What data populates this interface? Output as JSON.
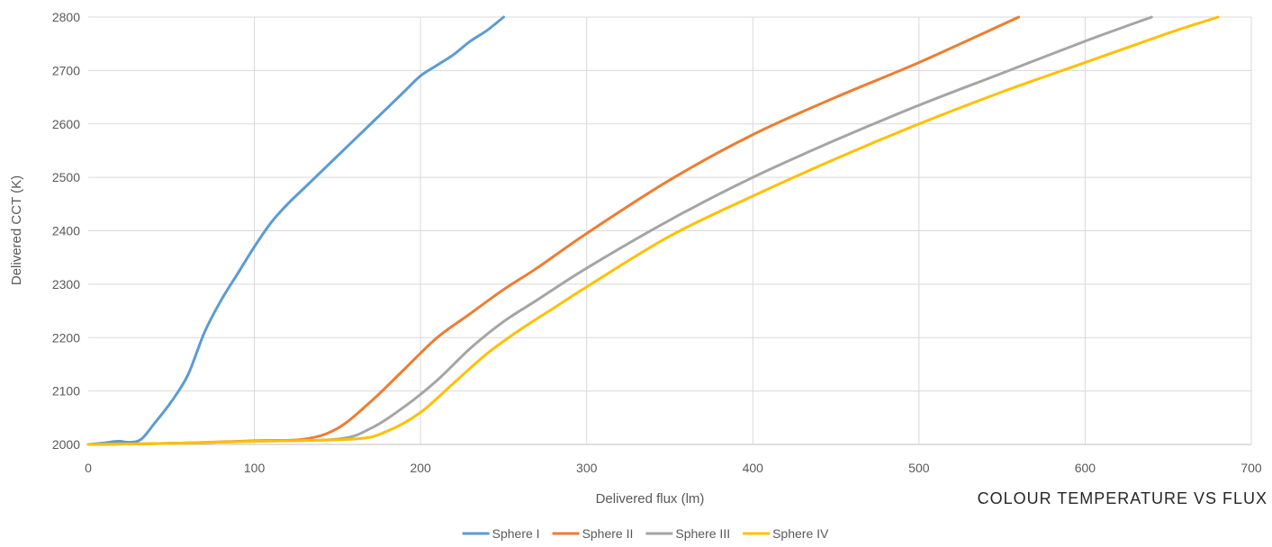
{
  "chart_data": {
    "type": "line",
    "title": "COLOUR TEMPERATURE VS FLUX",
    "xlabel": "Delivered flux (lm)",
    "ylabel": "Delivered CCT (K)",
    "xlim": [
      0,
      700
    ],
    "ylim": [
      2000,
      2800
    ],
    "xticks": [
      0,
      100,
      200,
      300,
      400,
      500,
      600,
      700
    ],
    "yticks": [
      2000,
      2100,
      2200,
      2300,
      2400,
      2500,
      2600,
      2700,
      2800
    ],
    "grid": true,
    "legend_position": "bottom",
    "series": [
      {
        "name": "Sphere I",
        "color": "#5b9bd5",
        "x": [
          0,
          10,
          18,
          25,
          32,
          40,
          50,
          60,
          70,
          80,
          90,
          100,
          110,
          120,
          130,
          140,
          150,
          160,
          170,
          180,
          190,
          200,
          210,
          220,
          230,
          240,
          250
        ],
        "y": [
          2000,
          2003,
          2006,
          2004,
          2010,
          2040,
          2080,
          2130,
          2210,
          2270,
          2320,
          2370,
          2415,
          2450,
          2480,
          2510,
          2540,
          2570,
          2600,
          2630,
          2660,
          2690,
          2710,
          2730,
          2755,
          2775,
          2800
        ]
      },
      {
        "name": "Sphere II",
        "color": "#ed7d31",
        "x": [
          0,
          50,
          100,
          130,
          150,
          170,
          190,
          210,
          230,
          250,
          270,
          300,
          350,
          400,
          450,
          500,
          560
        ],
        "y": [
          2000,
          2002,
          2007,
          2010,
          2030,
          2080,
          2140,
          2200,
          2245,
          2290,
          2330,
          2395,
          2495,
          2580,
          2650,
          2715,
          2800
        ]
      },
      {
        "name": "Sphere III",
        "color": "#a5a5a5",
        "x": [
          0,
          50,
          100,
          150,
          170,
          190,
          210,
          230,
          250,
          270,
          300,
          350,
          400,
          450,
          500,
          550,
          600,
          640
        ],
        "y": [
          2000,
          2002,
          2006,
          2010,
          2030,
          2070,
          2120,
          2180,
          2230,
          2270,
          2330,
          2420,
          2500,
          2570,
          2635,
          2695,
          2755,
          2800
        ]
      },
      {
        "name": "Sphere IV",
        "color": "#ffc000",
        "x": [
          0,
          50,
          100,
          160,
          180,
          200,
          220,
          240,
          260,
          280,
          300,
          350,
          400,
          450,
          500,
          550,
          600,
          650,
          680
        ],
        "y": [
          2000,
          2002,
          2006,
          2010,
          2025,
          2060,
          2115,
          2170,
          2215,
          2255,
          2295,
          2390,
          2465,
          2535,
          2600,
          2660,
          2715,
          2770,
          2800
        ]
      }
    ]
  }
}
